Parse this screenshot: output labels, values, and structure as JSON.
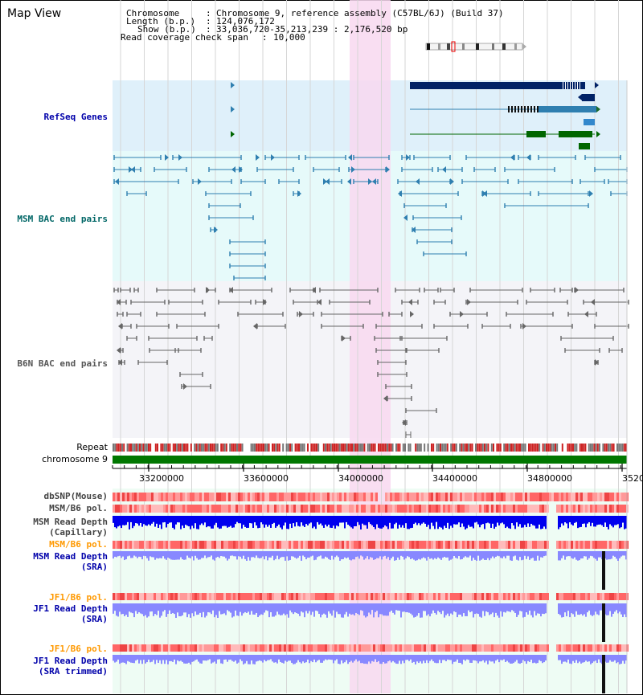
{
  "window": {
    "title": "Map View"
  },
  "chrom_info": {
    "chromosome_label": "Chromosome",
    "chromosome_value": "Chromosome 9, reference assembly (C57BL/6J) (Build 37)",
    "length_label": "Length (b.p.)",
    "length_value": "124,076,172",
    "show_label": "Show (b.p.)",
    "show_value": "33,036,720-35,213,239 : 2,176,520 bp",
    "span_label": "Read coverage check span",
    "span_value": "10,000"
  },
  "tracks": {
    "refseq": {
      "label": "RefSeq Genes",
      "color": "#0000aa"
    },
    "msm_bac": {
      "label": "MSM BAC end pairs",
      "color": "#006666"
    },
    "b6n_bac": {
      "label": "B6N BAC end pairs",
      "color": "#555555"
    },
    "repeat": {
      "label": "Repeat"
    },
    "chromosome": {
      "label": "chromosome 9"
    },
    "dbsnp": {
      "label": "dbSNP(Mouse)"
    },
    "msm_b6_pol": {
      "label": "MSM/B6 pol."
    },
    "msm_depth_cap": {
      "label_line1": "MSM Read Depth",
      "label_line2": "(Capillary)"
    },
    "msm_b6_pol2": {
      "label": "MSM/B6 pol.",
      "color": "#ff9900"
    },
    "msm_depth_sra": {
      "label_line1": "MSM Read Depth",
      "label_line2": "(SRA)"
    },
    "jf1_b6_pol": {
      "label": "JF1/B6 pol.",
      "color": "#ff9900"
    },
    "jf1_depth_sra": {
      "label_line1": "JF1 Read Depth",
      "label_line2": "(SRA)"
    },
    "jf1_b6_pol2": {
      "label": "JF1/B6 pol."
    },
    "jf1_depth_trim": {
      "label_line1": "JF1 Read Depth",
      "label_line2": "(SRA trimmed)"
    }
  },
  "axis": {
    "ticks": [
      "33200000",
      "33600000",
      "34000000",
      "34400000",
      "34800000",
      "3520"
    ]
  },
  "colors": {
    "highlight": "#f8d8f0",
    "refseq_bg": "#dff0fa",
    "bac_bg": "#e6fafa",
    "b6n_bg": "#f4f4f8",
    "lower_bg": "#eefcf4",
    "gene_dark": "#002266",
    "gene_mid": "#2f7fb0",
    "gene_green": "#006600",
    "chrom_green": "#007700",
    "depth_dark": "#0000ee",
    "depth_light": "#8888ff"
  }
}
